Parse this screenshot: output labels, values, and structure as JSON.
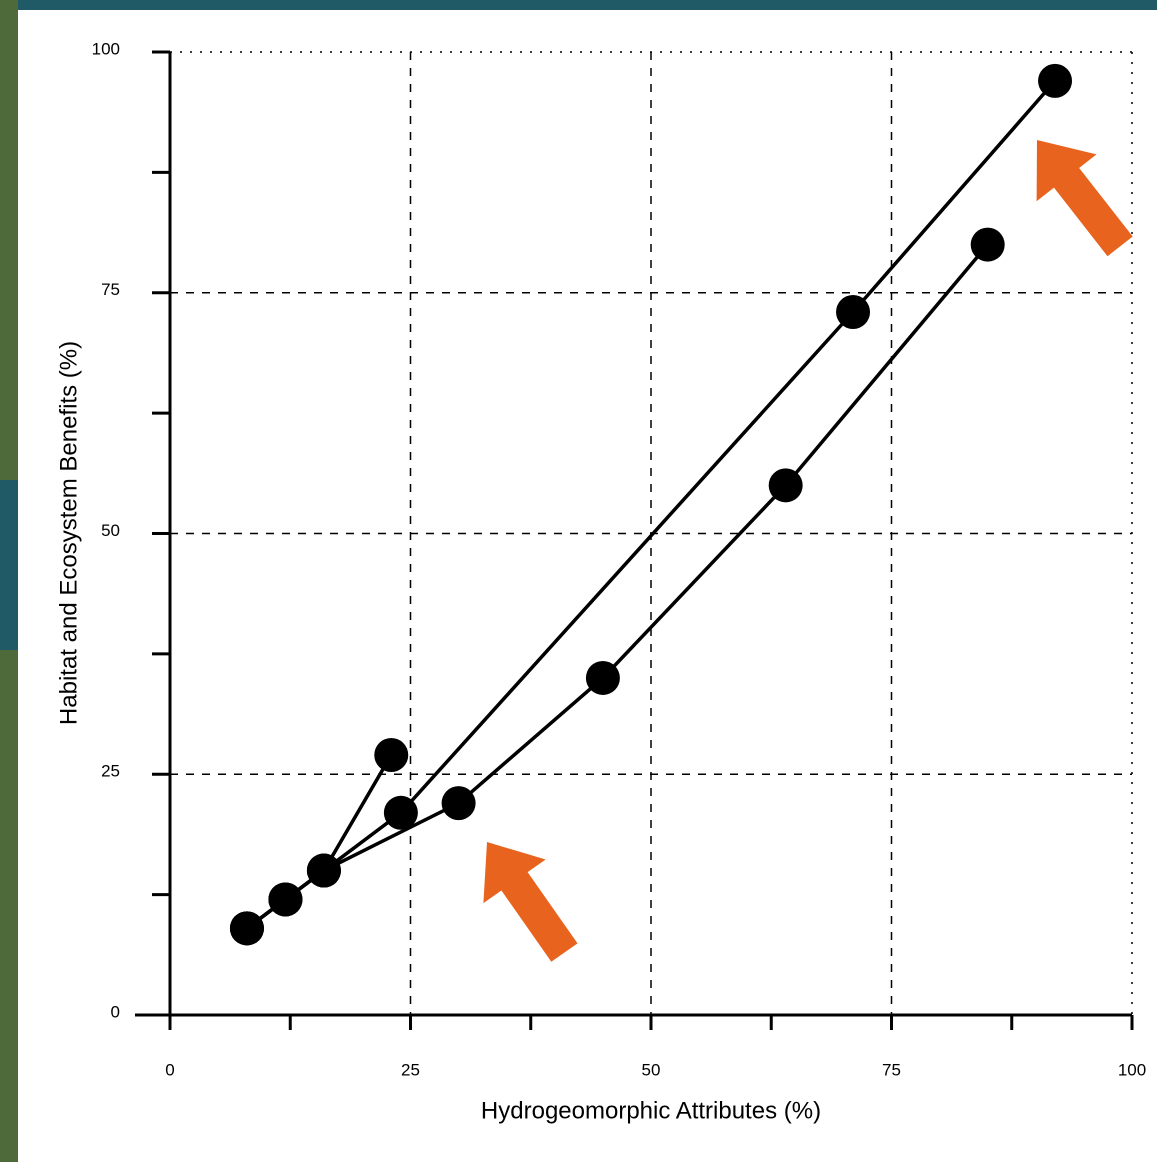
{
  "chart_data": {
    "type": "line",
    "xlabel": "Hydrogeomorphic Attributes (%)",
    "ylabel": "Habitat and Ecosystem Benefits (%)",
    "xlim": [
      0,
      100
    ],
    "ylim": [
      0,
      100
    ],
    "xticks": [
      0,
      25,
      50,
      75,
      100
    ],
    "yticks": [
      0,
      25,
      50,
      75,
      100
    ],
    "xminorticks": [
      12.5,
      37.5,
      62.5,
      87.5
    ],
    "yminorticks": [
      12.5,
      37.5,
      62.5,
      87.5
    ],
    "grid": true,
    "series": [
      {
        "color": "#000000",
        "x": [
          8,
          12,
          16,
          23
        ],
        "y": [
          9,
          12,
          15,
          27
        ]
      },
      {
        "color": "#000000",
        "x": [
          8,
          12,
          16,
          24,
          71,
          92
        ],
        "y": [
          9,
          12,
          15,
          21,
          73,
          97
        ]
      },
      {
        "color": "#000000",
        "x": [
          8,
          12,
          16,
          30,
          45,
          64,
          85
        ],
        "y": [
          9,
          12,
          15,
          22,
          35,
          55,
          80
        ]
      }
    ]
  }
}
